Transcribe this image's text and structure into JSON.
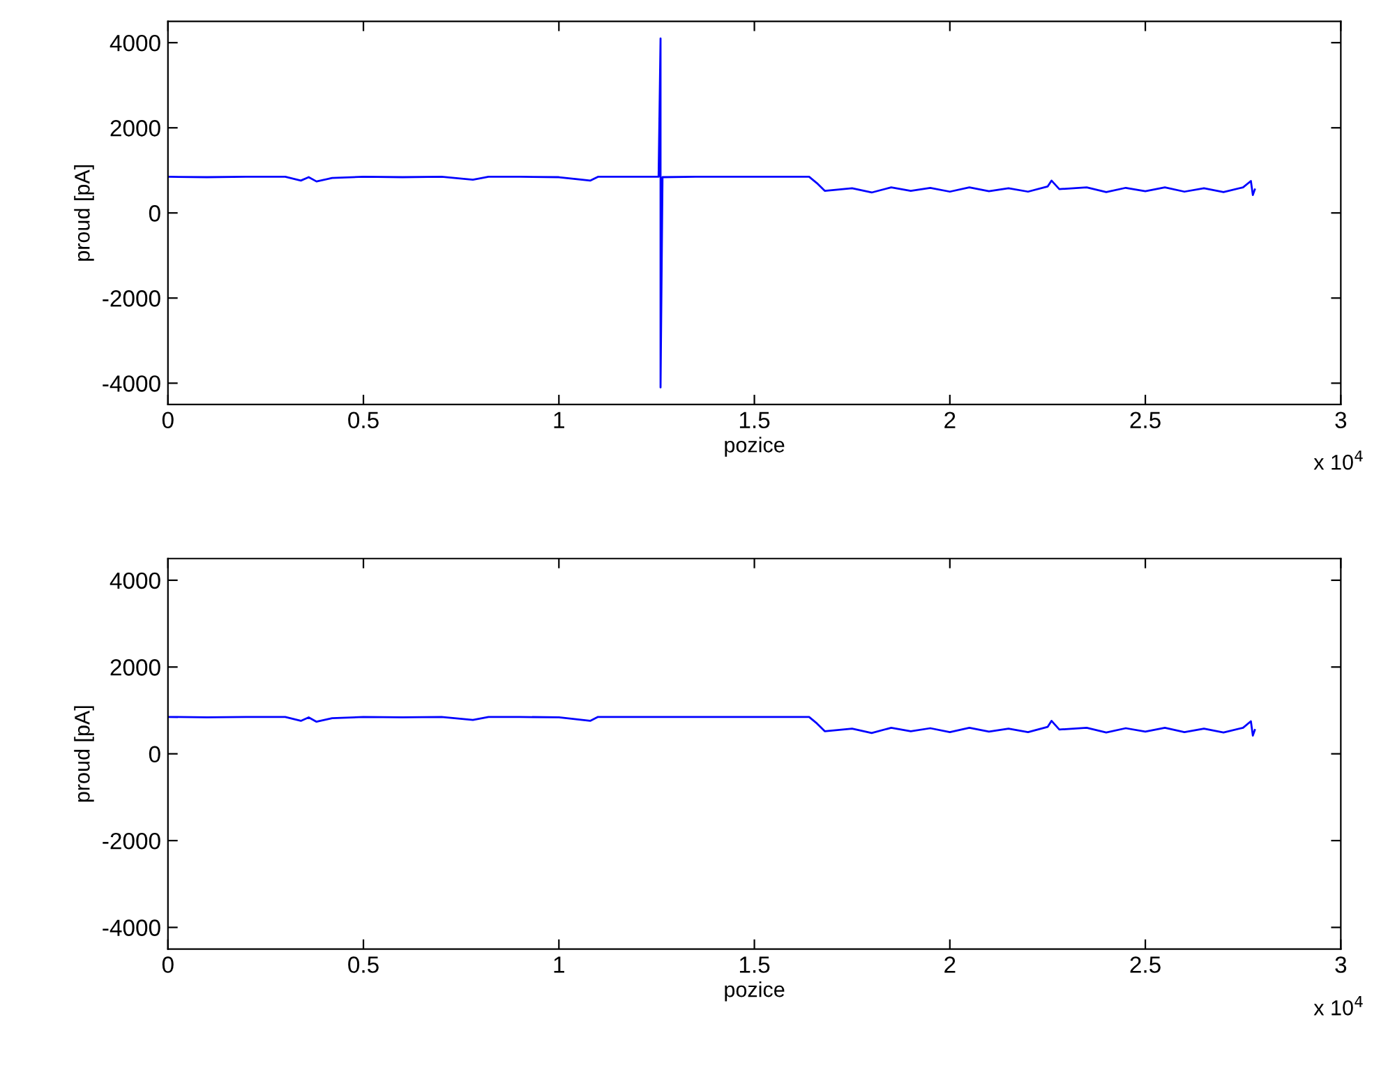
{
  "chart_data": [
    {
      "type": "line",
      "xlabel": "pozice",
      "ylabel": "proud [pA]",
      "annotations": [
        "x 10$^{4}$"
      ],
      "xlim": [
        0,
        3
      ],
      "ylim": [
        -4500,
        4500
      ],
      "xticks": [
        0,
        0.5,
        1,
        1.5,
        2,
        2.5,
        3
      ],
      "yticks": [
        -4000,
        -2000,
        0,
        2000,
        4000
      ],
      "series": [
        {
          "color": "#0000ff",
          "x": [
            0,
            0.1,
            0.2,
            0.3,
            0.34,
            0.36,
            0.38,
            0.42,
            0.5,
            0.6,
            0.7,
            0.78,
            0.82,
            0.9,
            1.0,
            1.08,
            1.1,
            1.2,
            1.255,
            1.26,
            1.26,
            1.265,
            1.35,
            1.45,
            1.55,
            1.64,
            1.66,
            1.68,
            1.75,
            1.8,
            1.85,
            1.9,
            1.95,
            2.0,
            2.05,
            2.1,
            2.15,
            2.2,
            2.25,
            2.26,
            2.28,
            2.35,
            2.4,
            2.45,
            2.5,
            2.55,
            2.6,
            2.65,
            2.7,
            2.75,
            2.77,
            2.775,
            2.78
          ],
          "values": [
            850,
            840,
            850,
            850,
            760,
            840,
            740,
            820,
            850,
            840,
            850,
            780,
            850,
            850,
            840,
            760,
            850,
            850,
            850,
            4100,
            -4100,
            840,
            850,
            850,
            850,
            850,
            700,
            520,
            580,
            480,
            600,
            520,
            590,
            500,
            600,
            510,
            580,
            500,
            620,
            760,
            560,
            600,
            490,
            590,
            510,
            600,
            500,
            580,
            490,
            600,
            750,
            420,
            550
          ]
        }
      ]
    },
    {
      "type": "line",
      "xlabel": "pozice",
      "ylabel": "proud [pA]",
      "annotations": [
        "x 10$^{4}$"
      ],
      "xlim": [
        0,
        3
      ],
      "ylim": [
        -4500,
        4500
      ],
      "xticks": [
        0,
        0.5,
        1,
        1.5,
        2,
        2.5,
        3
      ],
      "yticks": [
        -4000,
        -2000,
        0,
        2000,
        4000
      ],
      "series": [
        {
          "color": "#0000ff",
          "x": [
            0,
            0.1,
            0.2,
            0.3,
            0.34,
            0.36,
            0.38,
            0.42,
            0.5,
            0.6,
            0.7,
            0.78,
            0.82,
            0.9,
            1.0,
            1.08,
            1.1,
            1.2,
            1.35,
            1.45,
            1.55,
            1.64,
            1.66,
            1.68,
            1.75,
            1.8,
            1.85,
            1.9,
            1.95,
            2.0,
            2.05,
            2.1,
            2.15,
            2.2,
            2.25,
            2.26,
            2.28,
            2.35,
            2.4,
            2.45,
            2.5,
            2.55,
            2.6,
            2.65,
            2.7,
            2.75,
            2.77,
            2.775,
            2.78
          ],
          "values": [
            850,
            840,
            850,
            850,
            760,
            840,
            740,
            820,
            850,
            840,
            850,
            780,
            850,
            850,
            840,
            760,
            850,
            850,
            850,
            850,
            850,
            850,
            700,
            520,
            580,
            480,
            600,
            520,
            590,
            500,
            600,
            510,
            580,
            500,
            620,
            760,
            560,
            600,
            490,
            590,
            510,
            600,
            500,
            580,
            490,
            600,
            750,
            420,
            550
          ]
        }
      ]
    }
  ]
}
